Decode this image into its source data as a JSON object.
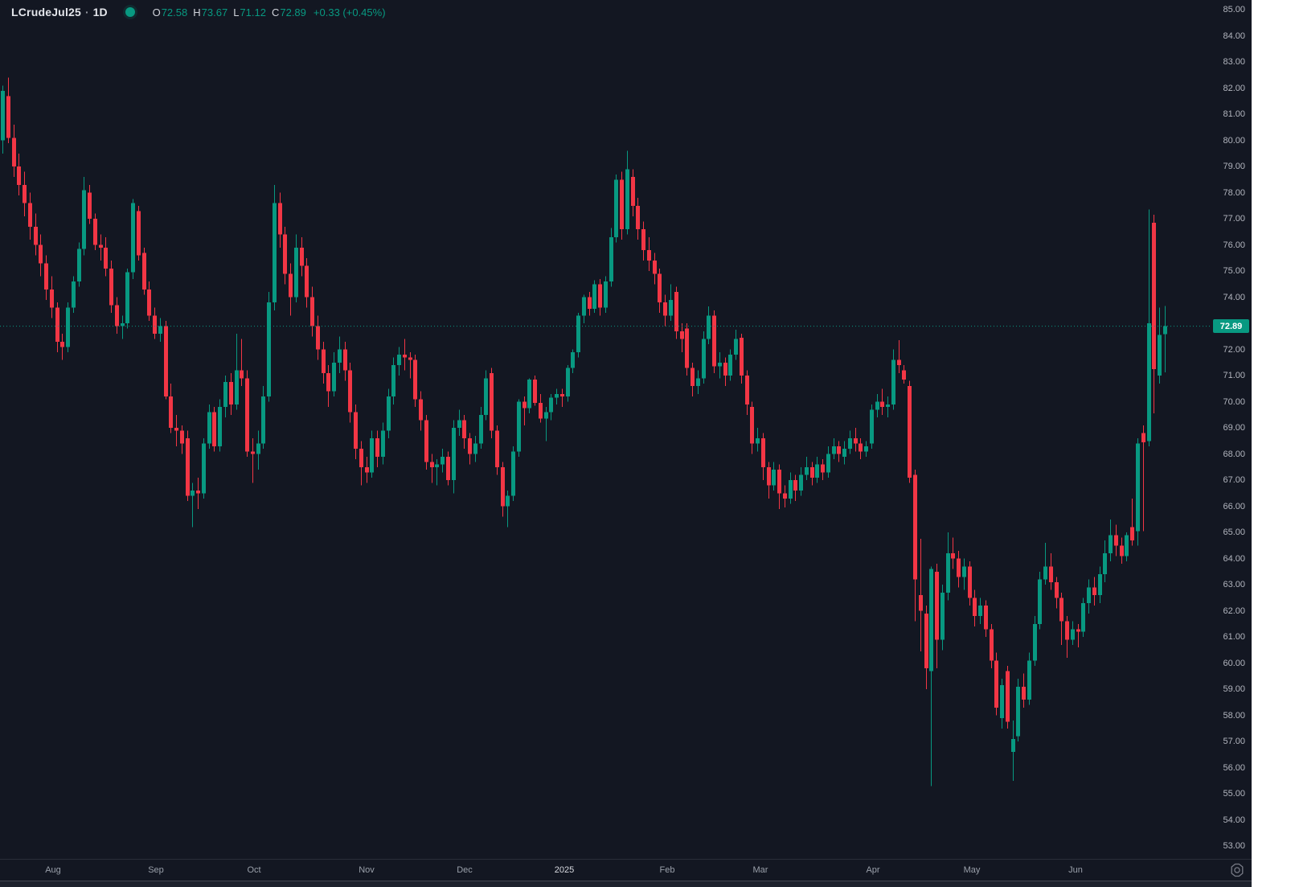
{
  "header": {
    "symbol": "LCrudeJul25",
    "separator": "·",
    "interval": "1D",
    "ohlc": {
      "o_label": "O",
      "o": "72.58",
      "h_label": "H",
      "h": "73.67",
      "l_label": "L",
      "l": "71.12",
      "c_label": "C",
      "c": "72.89",
      "change": "+0.33 (+0.45%)"
    }
  },
  "colors": {
    "background": "#131722",
    "up": "#089981",
    "down": "#f23645",
    "axis_text": "#b2b5be",
    "header_text": "#d1d4dc",
    "value_text": "#089981",
    "badge_bg": "#089981",
    "badge_text": "#ffffff",
    "price_line": "#089981",
    "status_dot": "#089981"
  },
  "icons": {
    "status_dot": "filled-circle",
    "time_axis_settings": "gear-icon"
  },
  "price_scale": {
    "min": 53,
    "max": 85,
    "step": 1,
    "decimals": 2,
    "last_price_label": "72.89"
  },
  "chart_data": {
    "type": "candlestick",
    "title": "LCrudeJul25 1D candlestick chart, Jul 2024 - Jun 2025",
    "grid": "off",
    "legend_position": "top-left",
    "ylim": [
      52.51,
      85.37
    ],
    "x0": 3,
    "dx": 6.756,
    "last_price": 72.89,
    "price_line": {
      "value": 72.89,
      "style": "dotted"
    },
    "x_ticks": [
      {
        "label": "Aug",
        "i": 9.3
      },
      {
        "label": "Sep",
        "i": 28.3
      },
      {
        "label": "Oct",
        "i": 46.3
      },
      {
        "label": "Nov",
        "i": 67.1
      },
      {
        "label": "Dec",
        "i": 85.1
      },
      {
        "label": "2025",
        "i": 103.5,
        "emphasis": true
      },
      {
        "label": "Feb",
        "i": 122.4
      },
      {
        "label": "Mar",
        "i": 139.6
      },
      {
        "label": "Apr",
        "i": 160.3
      },
      {
        "label": "May",
        "i": 178.5
      },
      {
        "label": "Jun",
        "i": 197.6
      }
    ],
    "candles": [
      [
        80.0,
        82.1,
        79.5,
        81.9
      ],
      [
        81.7,
        82.4,
        79.9,
        80.1
      ],
      [
        80.1,
        80.6,
        78.6,
        79.0
      ],
      [
        79.0,
        79.5,
        77.9,
        78.3
      ],
      [
        78.3,
        78.8,
        77.1,
        77.6
      ],
      [
        77.6,
        78.0,
        76.2,
        76.7
      ],
      [
        76.7,
        77.2,
        75.6,
        76.0
      ],
      [
        76.0,
        76.4,
        74.8,
        75.3
      ],
      [
        75.3,
        75.6,
        73.9,
        74.3
      ],
      [
        74.3,
        74.8,
        73.2,
        73.6
      ],
      [
        73.6,
        73.8,
        71.9,
        72.3
      ],
      [
        72.3,
        72.6,
        71.6,
        72.1
      ],
      [
        72.1,
        73.8,
        71.9,
        73.6
      ],
      [
        73.6,
        74.8,
        73.4,
        74.6
      ],
      [
        74.6,
        76.1,
        74.4,
        75.85
      ],
      [
        75.85,
        78.6,
        75.6,
        78.1
      ],
      [
        78.0,
        78.3,
        76.8,
        77.0
      ],
      [
        77.0,
        77.2,
        75.8,
        76.0
      ],
      [
        76.0,
        76.4,
        75.4,
        75.9
      ],
      [
        75.9,
        76.3,
        74.8,
        75.1
      ],
      [
        75.1,
        75.4,
        73.4,
        73.7
      ],
      [
        73.7,
        74.0,
        72.6,
        72.9
      ],
      [
        72.9,
        73.3,
        72.4,
        73.0
      ],
      [
        73.0,
        75.1,
        72.8,
        74.95
      ],
      [
        74.95,
        77.75,
        74.7,
        77.6
      ],
      [
        77.3,
        77.5,
        75.4,
        75.6
      ],
      [
        75.7,
        75.9,
        74.1,
        74.3
      ],
      [
        74.3,
        74.6,
        73.1,
        73.3
      ],
      [
        73.3,
        73.6,
        72.4,
        72.6
      ],
      [
        72.6,
        73.2,
        72.3,
        72.9
      ],
      [
        72.9,
        73.1,
        70.1,
        70.2
      ],
      [
        70.2,
        70.7,
        68.8,
        69.0
      ],
      [
        69.0,
        69.5,
        68.3,
        68.9
      ],
      [
        68.9,
        69.1,
        68.0,
        68.4
      ],
      [
        68.6,
        68.9,
        66.2,
        66.4
      ],
      [
        66.4,
        66.9,
        65.2,
        66.6
      ],
      [
        66.6,
        67.1,
        65.9,
        66.5
      ],
      [
        66.5,
        68.6,
        66.3,
        68.4
      ],
      [
        68.4,
        69.9,
        68.2,
        69.6
      ],
      [
        69.6,
        69.8,
        68.1,
        68.3
      ],
      [
        68.3,
        70.1,
        68.1,
        69.8
      ],
      [
        69.8,
        71.0,
        69.4,
        70.75
      ],
      [
        70.75,
        71.1,
        69.5,
        69.9
      ],
      [
        69.9,
        72.6,
        69.7,
        71.2
      ],
      [
        71.2,
        72.4,
        70.6,
        70.9
      ],
      [
        70.9,
        71.2,
        67.9,
        68.1
      ],
      [
        68.1,
        68.6,
        66.9,
        68.0
      ],
      [
        68.0,
        68.9,
        67.4,
        68.4
      ],
      [
        68.4,
        70.6,
        68.2,
        70.2
      ],
      [
        70.2,
        74.2,
        70.0,
        73.8
      ],
      [
        73.8,
        78.3,
        73.5,
        77.6
      ],
      [
        77.6,
        78.0,
        75.9,
        76.4
      ],
      [
        76.4,
        76.7,
        74.5,
        74.9
      ],
      [
        74.9,
        75.3,
        73.3,
        74.0
      ],
      [
        74.0,
        76.4,
        73.8,
        75.9
      ],
      [
        75.9,
        76.3,
        74.8,
        75.2
      ],
      [
        75.2,
        75.5,
        73.6,
        74.0
      ],
      [
        74.0,
        74.4,
        72.5,
        72.9
      ],
      [
        72.9,
        73.3,
        71.6,
        72.0
      ],
      [
        72.0,
        72.3,
        70.7,
        71.1
      ],
      [
        71.1,
        71.4,
        69.8,
        70.4
      ],
      [
        70.4,
        71.9,
        70.2,
        71.5
      ],
      [
        71.5,
        72.5,
        71.1,
        72.0
      ],
      [
        72.0,
        72.3,
        70.8,
        71.2
      ],
      [
        71.2,
        71.5,
        69.2,
        69.6
      ],
      [
        69.6,
        69.9,
        67.8,
        68.2
      ],
      [
        68.2,
        68.5,
        66.8,
        67.5
      ],
      [
        67.5,
        67.9,
        66.9,
        67.3
      ],
      [
        67.3,
        68.9,
        67.1,
        68.6
      ],
      [
        68.6,
        68.9,
        67.5,
        67.9
      ],
      [
        67.9,
        69.2,
        67.6,
        68.9
      ],
      [
        68.9,
        70.5,
        68.6,
        70.2
      ],
      [
        70.2,
        71.7,
        69.9,
        71.4
      ],
      [
        71.4,
        72.1,
        71.0,
        71.8
      ],
      [
        71.8,
        72.4,
        71.2,
        71.7
      ],
      [
        71.7,
        71.9,
        70.9,
        71.6
      ],
      [
        71.6,
        71.8,
        69.8,
        70.1
      ],
      [
        70.1,
        70.4,
        68.9,
        69.3
      ],
      [
        69.3,
        69.5,
        67.4,
        67.7
      ],
      [
        67.7,
        68.0,
        66.9,
        67.5
      ],
      [
        67.5,
        67.8,
        66.8,
        67.6
      ],
      [
        67.6,
        68.2,
        67.3,
        67.9
      ],
      [
        67.9,
        68.1,
        66.8,
        67.0
      ],
      [
        67.0,
        69.3,
        66.5,
        69.0
      ],
      [
        69.0,
        69.7,
        68.7,
        69.3
      ],
      [
        69.3,
        69.5,
        68.2,
        68.6
      ],
      [
        68.6,
        68.8,
        67.6,
        68.0
      ],
      [
        68.0,
        68.7,
        67.7,
        68.4
      ],
      [
        68.4,
        69.8,
        68.2,
        69.5
      ],
      [
        69.5,
        71.2,
        69.3,
        70.9
      ],
      [
        71.1,
        71.3,
        68.6,
        68.9
      ],
      [
        68.9,
        69.1,
        67.2,
        67.5
      ],
      [
        67.5,
        67.7,
        65.6,
        66.0
      ],
      [
        66.0,
        66.6,
        65.2,
        66.4
      ],
      [
        66.4,
        68.3,
        66.2,
        68.1
      ],
      [
        68.1,
        70.1,
        67.9,
        70.0
      ],
      [
        70.0,
        70.2,
        69.1,
        69.75
      ],
      [
        69.75,
        70.9,
        69.55,
        70.85
      ],
      [
        70.85,
        71.0,
        69.85,
        69.95
      ],
      [
        69.95,
        70.3,
        69.2,
        69.35
      ],
      [
        69.35,
        69.8,
        68.5,
        69.6
      ],
      [
        69.6,
        70.3,
        69.3,
        70.15
      ],
      [
        70.15,
        70.5,
        69.9,
        70.3
      ],
      [
        70.3,
        70.5,
        69.8,
        70.2
      ],
      [
        70.2,
        71.4,
        70.0,
        71.3
      ],
      [
        71.3,
        72.0,
        71.1,
        71.9
      ],
      [
        71.9,
        73.4,
        71.7,
        73.3
      ],
      [
        73.3,
        74.1,
        73.0,
        74.0
      ],
      [
        74.0,
        74.2,
        73.3,
        73.55
      ],
      [
        73.55,
        74.65,
        73.4,
        74.5
      ],
      [
        74.5,
        74.7,
        73.3,
        73.6
      ],
      [
        73.6,
        74.8,
        73.4,
        74.6
      ],
      [
        74.6,
        76.65,
        74.4,
        76.3
      ],
      [
        76.3,
        78.7,
        76.1,
        78.5
      ],
      [
        78.5,
        78.8,
        76.2,
        76.6
      ],
      [
        76.6,
        79.6,
        76.4,
        78.9
      ],
      [
        78.6,
        78.9,
        77.1,
        77.5
      ],
      [
        77.5,
        77.8,
        76.2,
        76.6
      ],
      [
        76.6,
        76.9,
        75.4,
        75.8
      ],
      [
        75.8,
        76.3,
        75.0,
        75.4
      ],
      [
        75.4,
        75.7,
        74.5,
        74.9
      ],
      [
        74.9,
        75.1,
        73.4,
        73.8
      ],
      [
        73.8,
        74.1,
        72.9,
        73.3
      ],
      [
        73.3,
        74.5,
        73.1,
        73.9
      ],
      [
        74.2,
        74.4,
        72.4,
        72.7
      ],
      [
        72.7,
        73.0,
        71.9,
        72.4
      ],
      [
        72.8,
        73.0,
        71.0,
        71.3
      ],
      [
        71.3,
        71.5,
        70.2,
        70.6
      ],
      [
        70.6,
        71.2,
        70.3,
        70.9
      ],
      [
        70.9,
        72.7,
        70.7,
        72.4
      ],
      [
        72.4,
        73.65,
        72.2,
        73.3
      ],
      [
        73.3,
        73.5,
        71.1,
        71.35
      ],
      [
        71.35,
        71.9,
        70.9,
        71.5
      ],
      [
        71.5,
        71.7,
        70.6,
        71.0
      ],
      [
        71.0,
        72.0,
        70.8,
        71.8
      ],
      [
        71.8,
        72.75,
        71.6,
        72.4
      ],
      [
        72.45,
        72.6,
        70.7,
        71.0
      ],
      [
        71.0,
        71.2,
        69.5,
        69.9
      ],
      [
        69.8,
        70.0,
        68.0,
        68.4
      ],
      [
        68.4,
        69.0,
        68.1,
        68.6
      ],
      [
        68.6,
        68.8,
        67.0,
        67.5
      ],
      [
        67.5,
        67.7,
        66.3,
        66.8
      ],
      [
        66.8,
        67.7,
        66.6,
        67.4
      ],
      [
        67.4,
        67.6,
        65.9,
        66.5
      ],
      [
        66.5,
        66.8,
        65.95,
        66.3
      ],
      [
        66.3,
        67.3,
        66.1,
        67.0
      ],
      [
        67.0,
        67.2,
        66.2,
        66.6
      ],
      [
        66.6,
        67.5,
        66.4,
        67.2
      ],
      [
        67.2,
        67.9,
        67.0,
        67.5
      ],
      [
        67.5,
        67.7,
        66.8,
        67.1
      ],
      [
        67.1,
        67.9,
        66.9,
        67.6
      ],
      [
        67.6,
        67.8,
        67.0,
        67.3
      ],
      [
        67.3,
        68.3,
        67.1,
        68.0
      ],
      [
        68.0,
        68.6,
        67.8,
        68.3
      ],
      [
        68.3,
        68.5,
        67.7,
        68.0
      ],
      [
        67.9,
        68.5,
        67.6,
        68.2
      ],
      [
        68.2,
        68.9,
        68.0,
        68.6
      ],
      [
        68.6,
        69.0,
        68.1,
        68.4
      ],
      [
        68.4,
        68.6,
        67.8,
        68.1
      ],
      [
        68.1,
        68.5,
        67.9,
        68.3
      ],
      [
        68.4,
        69.9,
        68.2,
        69.7
      ],
      [
        69.7,
        70.3,
        69.4,
        70.0
      ],
      [
        70.0,
        70.5,
        69.5,
        69.8
      ],
      [
        69.8,
        70.2,
        69.4,
        69.9
      ],
      [
        69.9,
        72.0,
        69.7,
        71.6
      ],
      [
        71.6,
        72.35,
        71.1,
        71.4
      ],
      [
        71.2,
        71.4,
        70.7,
        70.85
      ],
      [
        70.6,
        70.8,
        66.9,
        67.1
      ],
      [
        67.2,
        67.4,
        61.6,
        63.2
      ],
      [
        62.6,
        64.75,
        60.45,
        62.0
      ],
      [
        61.9,
        62.2,
        59.0,
        59.8
      ],
      [
        59.7,
        63.7,
        55.3,
        63.6
      ],
      [
        63.5,
        63.8,
        59.8,
        60.9
      ],
      [
        60.9,
        63.0,
        60.5,
        62.7
      ],
      [
        62.7,
        65.0,
        62.4,
        64.2
      ],
      [
        64.2,
        64.8,
        63.6,
        64.0
      ],
      [
        64.0,
        64.3,
        62.9,
        63.3
      ],
      [
        63.3,
        64.0,
        62.8,
        63.7
      ],
      [
        63.7,
        63.9,
        62.2,
        62.5
      ],
      [
        62.5,
        62.8,
        61.4,
        61.8
      ],
      [
        61.8,
        62.5,
        61.5,
        62.2
      ],
      [
        62.2,
        62.4,
        61.0,
        61.3
      ],
      [
        61.3,
        61.5,
        59.8,
        60.1
      ],
      [
        60.1,
        60.4,
        58.0,
        58.3
      ],
      [
        57.9,
        59.4,
        57.5,
        59.15
      ],
      [
        59.7,
        59.9,
        57.5,
        57.75
      ],
      [
        56.6,
        57.8,
        55.5,
        57.1
      ],
      [
        57.2,
        59.4,
        57.0,
        59.1
      ],
      [
        59.1,
        59.6,
        58.3,
        58.6
      ],
      [
        58.6,
        60.4,
        58.4,
        60.1
      ],
      [
        60.1,
        61.8,
        59.9,
        61.5
      ],
      [
        61.5,
        63.5,
        61.3,
        63.2
      ],
      [
        63.2,
        64.6,
        63.0,
        63.7
      ],
      [
        63.7,
        64.2,
        62.8,
        63.1
      ],
      [
        63.1,
        63.3,
        62.1,
        62.5
      ],
      [
        62.5,
        62.7,
        60.7,
        61.6
      ],
      [
        61.6,
        61.8,
        60.2,
        60.9
      ],
      [
        60.9,
        61.6,
        60.7,
        61.3
      ],
      [
        61.3,
        61.5,
        60.6,
        61.2
      ],
      [
        61.2,
        62.5,
        61.0,
        62.3
      ],
      [
        62.3,
        63.2,
        61.9,
        62.9
      ],
      [
        62.9,
        63.3,
        62.2,
        62.6
      ],
      [
        62.6,
        63.7,
        62.3,
        63.4
      ],
      [
        63.4,
        64.7,
        63.1,
        64.2
      ],
      [
        64.2,
        65.5,
        63.9,
        64.9
      ],
      [
        64.9,
        65.3,
        64.1,
        64.5
      ],
      [
        64.5,
        64.8,
        63.8,
        64.1
      ],
      [
        64.1,
        65.0,
        63.9,
        64.9
      ],
      [
        65.2,
        66.3,
        64.5,
        64.7
      ],
      [
        65.05,
        68.6,
        64.5,
        68.4
      ],
      [
        68.8,
        69.1,
        65.05,
        68.45
      ],
      [
        68.5,
        77.35,
        68.3,
        73.0
      ],
      [
        76.85,
        77.15,
        69.55,
        71.25
      ],
      [
        71.0,
        73.6,
        70.7,
        72.56
      ],
      [
        72.58,
        73.67,
        71.12,
        72.89
      ]
    ]
  }
}
